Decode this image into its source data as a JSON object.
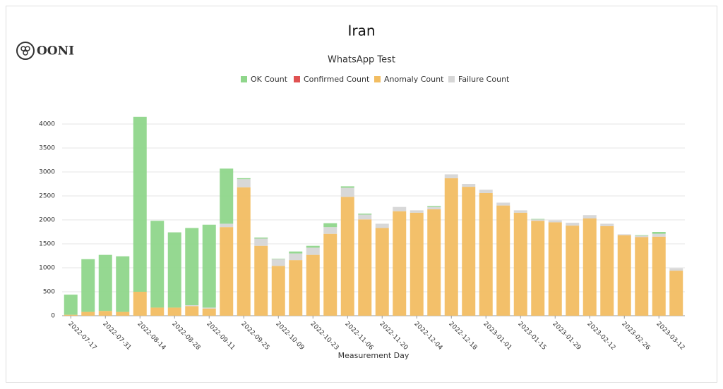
{
  "brand": "OONI",
  "chart_data": {
    "type": "stacked_bar",
    "title": "Iran",
    "subtitle": "WhatsApp Test",
    "x_label": "Measurement Day",
    "categories": [
      "2022-07-17",
      null,
      "2022-07-31",
      null,
      "2022-08-14",
      null,
      "2022-08-28",
      null,
      "2022-09-11",
      null,
      "2022-09-25",
      null,
      "2022-10-09",
      null,
      "2022-10-23",
      null,
      "2022-11-06",
      null,
      "2022-11-20",
      null,
      "2022-12-04",
      null,
      "2022-12-18",
      null,
      "2023-01-01",
      null,
      "2023-01-15",
      null,
      "2023-01-29",
      null,
      "2023-02-12",
      null,
      "2023-02-26",
      null,
      "2023-03-12",
      null
    ],
    "series": [
      {
        "name": "OK Count",
        "color": "#8fd68b",
        "values": [
          420,
          1100,
          1170,
          1160,
          3650,
          1810,
          1570,
          1610,
          1730,
          1150,
          20,
          20,
          10,
          40,
          40,
          80,
          30,
          20,
          0,
          0,
          0,
          20,
          0,
          0,
          0,
          0,
          0,
          10,
          0,
          0,
          0,
          0,
          0,
          10,
          40,
          0
        ]
      },
      {
        "name": "Confirmed Count",
        "color": "#e05252",
        "values": [
          0,
          0,
          0,
          0,
          0,
          0,
          0,
          0,
          0,
          0,
          0,
          0,
          0,
          0,
          0,
          0,
          0,
          0,
          0,
          0,
          0,
          0,
          0,
          0,
          0,
          0,
          0,
          0,
          0,
          0,
          0,
          0,
          0,
          0,
          0,
          0
        ]
      },
      {
        "name": "Anomaly Count",
        "color": "#f2bd62",
        "values": [
          20,
          80,
          100,
          80,
          500,
          170,
          170,
          200,
          150,
          1850,
          2680,
          1460,
          1040,
          1160,
          1270,
          1710,
          2480,
          2010,
          1830,
          2180,
          2150,
          2220,
          2870,
          2690,
          2560,
          2300,
          2150,
          1980,
          1950,
          1880,
          2030,
          1870,
          1680,
          1640,
          1650,
          940
        ]
      },
      {
        "name": "Failure Count",
        "color": "#d6d6d6",
        "values": [
          0,
          0,
          0,
          0,
          0,
          0,
          0,
          20,
          20,
          70,
          170,
          150,
          140,
          140,
          150,
          140,
          190,
          100,
          90,
          90,
          50,
          50,
          80,
          60,
          70,
          60,
          50,
          30,
          40,
          60,
          70,
          50,
          20,
          30,
          60,
          50
        ]
      }
    ],
    "ylim": [
      0,
      4400
    ],
    "yticks": [
      0,
      500,
      1000,
      1500,
      2000,
      2500,
      3000,
      3500,
      4000
    ],
    "grid": true,
    "legend": "top"
  }
}
